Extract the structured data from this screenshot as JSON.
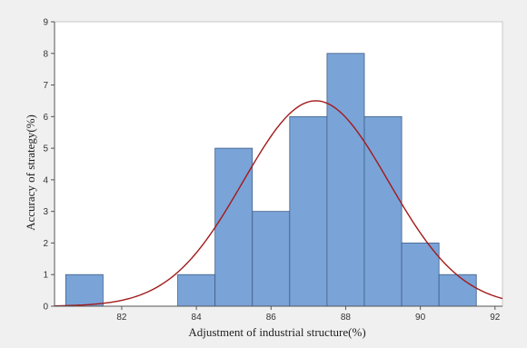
{
  "chart_data": {
    "type": "bar",
    "xlabel": "Adjustment of industrial structure(%)",
    "ylabel": "Accuracy of strategy(%)",
    "xlim": [
      80.2,
      92.2
    ],
    "ylim": [
      0,
      9
    ],
    "x_ticks": [
      82,
      84,
      86,
      88,
      90,
      92
    ],
    "y_ticks": [
      0,
      1,
      2,
      3,
      4,
      5,
      6,
      7,
      8,
      9
    ],
    "bins": [
      {
        "from": 80.5,
        "to": 81.5,
        "value": 1
      },
      {
        "from": 83.5,
        "to": 84.5,
        "value": 1
      },
      {
        "from": 84.5,
        "to": 85.5,
        "value": 5
      },
      {
        "from": 85.5,
        "to": 86.5,
        "value": 3
      },
      {
        "from": 86.5,
        "to": 87.5,
        "value": 6
      },
      {
        "from": 87.5,
        "to": 88.5,
        "value": 8
      },
      {
        "from": 88.5,
        "to": 89.5,
        "value": 6
      },
      {
        "from": 89.5,
        "to": 90.5,
        "value": 2
      },
      {
        "from": 90.5,
        "to": 91.5,
        "value": 1
      }
    ],
    "fit_curve": {
      "type": "normal",
      "mean": 87.2,
      "peak": 6.5,
      "sd": 1.95
    },
    "grid": false,
    "colors": {
      "bar_fill": "#7aa3d8",
      "bar_stroke": "#3f5f86",
      "curve": "#a31a1a",
      "plot_bg": "#ffffff",
      "frame_bg": "#f0f0f0"
    }
  }
}
